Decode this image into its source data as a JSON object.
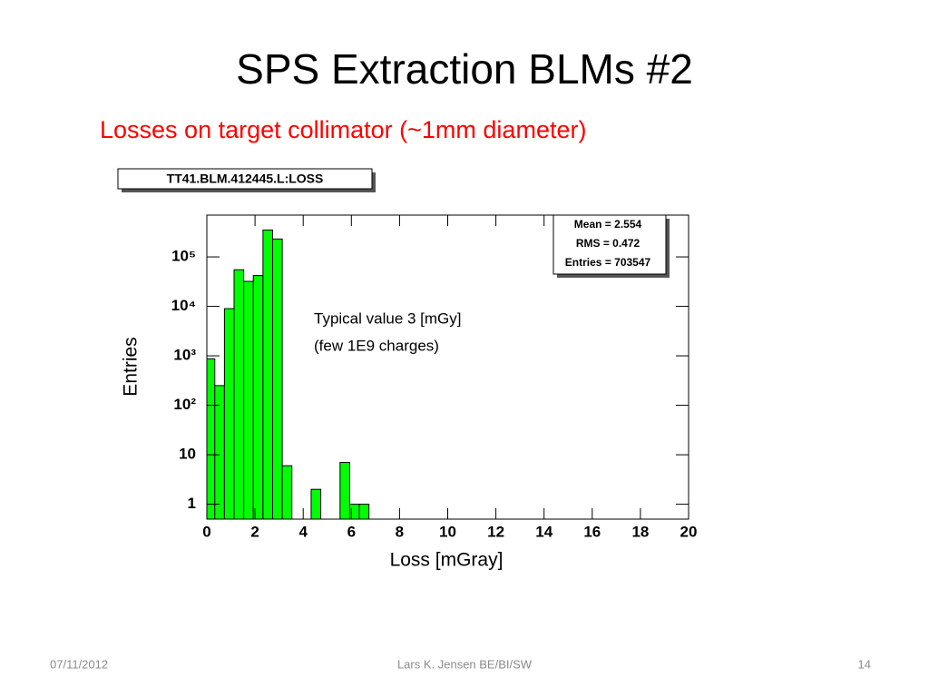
{
  "title": "SPS Extraction BLMs #2",
  "subtitle": "Losses on target collimator (~1mm diameter)",
  "footer": {
    "date": "07/11/2012",
    "author": "Lars K. Jensen BE/BI/SW",
    "page": "14"
  },
  "chart_data": {
    "type": "histogram",
    "name": "TT41.BLM.412445.L:LOSS",
    "stats": [
      "Mean = 2.554",
      "RMS = 0.472",
      "Entries = 703547"
    ],
    "annotation": [
      "Typical value 3 [mGy]",
      "(few 1E9 charges)"
    ],
    "xlabel": "Loss [mGray]",
    "ylabel": "Entries",
    "bins": [
      0,
      0.33,
      0.73,
      1.13,
      1.53,
      1.93,
      2.33,
      2.73,
      3.13,
      3.53,
      3.93,
      4.33,
      4.73,
      5.13,
      5.53,
      5.93,
      6.33,
      6.73
    ],
    "counts": [
      870,
      250,
      9000,
      55000,
      32000,
      42000,
      350000,
      230000,
      6,
      0,
      0,
      2,
      0,
      0,
      7,
      1,
      1
    ],
    "color": "#00ff00",
    "xlim": [
      0,
      20
    ],
    "xticks": [
      0,
      2,
      4,
      6,
      8,
      10,
      12,
      14,
      16,
      18,
      20
    ],
    "ylim": [
      0.5,
      700000
    ],
    "log_y": true,
    "yticks": [
      1,
      10,
      {
        "value": 100,
        "label": "10²"
      },
      {
        "value": 1000,
        "label": "10³"
      },
      {
        "value": 10000,
        "label": "10⁴"
      },
      {
        "value": 100000,
        "label": "10⁵"
      }
    ]
  }
}
